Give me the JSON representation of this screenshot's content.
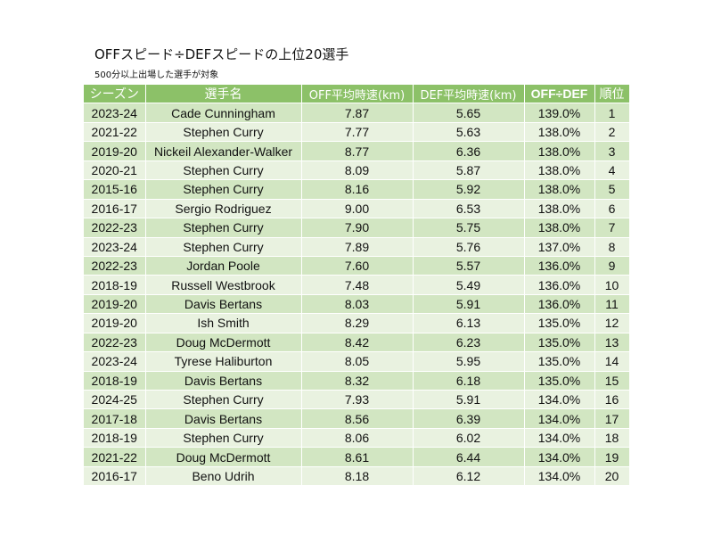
{
  "header": {
    "title": "OFFスピード÷DEFスピードの上位20選手",
    "subtitle": "500分以上出場した選手が対象"
  },
  "table": {
    "columns": [
      "シーズン",
      "選手名",
      "OFF平均時速(km)",
      "DEF平均時速(km)",
      "OFF÷DEF",
      "順位"
    ],
    "rows": [
      [
        "2023-24",
        "Cade Cunningham",
        "7.87",
        "5.65",
        "139.0%",
        "1"
      ],
      [
        "2021-22",
        "Stephen Curry",
        "7.77",
        "5.63",
        "138.0%",
        "2"
      ],
      [
        "2019-20",
        "Nickeil Alexander-Walker",
        "8.77",
        "6.36",
        "138.0%",
        "3"
      ],
      [
        "2020-21",
        "Stephen Curry",
        "8.09",
        "5.87",
        "138.0%",
        "4"
      ],
      [
        "2015-16",
        "Stephen Curry",
        "8.16",
        "5.92",
        "138.0%",
        "5"
      ],
      [
        "2016-17",
        "Sergio Rodriguez",
        "9.00",
        "6.53",
        "138.0%",
        "6"
      ],
      [
        "2022-23",
        "Stephen Curry",
        "7.90",
        "5.75",
        "138.0%",
        "7"
      ],
      [
        "2023-24",
        "Stephen Curry",
        "7.89",
        "5.76",
        "137.0%",
        "8"
      ],
      [
        "2022-23",
        "Jordan Poole",
        "7.60",
        "5.57",
        "136.0%",
        "9"
      ],
      [
        "2018-19",
        "Russell Westbrook",
        "7.48",
        "5.49",
        "136.0%",
        "10"
      ],
      [
        "2019-20",
        "Davis Bertans",
        "8.03",
        "5.91",
        "136.0%",
        "11"
      ],
      [
        "2019-20",
        "Ish Smith",
        "8.29",
        "6.13",
        "135.0%",
        "12"
      ],
      [
        "2022-23",
        "Doug McDermott",
        "8.42",
        "6.23",
        "135.0%",
        "13"
      ],
      [
        "2023-24",
        "Tyrese Haliburton",
        "8.05",
        "5.95",
        "135.0%",
        "14"
      ],
      [
        "2018-19",
        "Davis Bertans",
        "8.32",
        "6.18",
        "135.0%",
        "15"
      ],
      [
        "2024-25",
        "Stephen Curry",
        "7.93",
        "5.91",
        "134.0%",
        "16"
      ],
      [
        "2017-18",
        "Davis Bertans",
        "8.56",
        "6.39",
        "134.0%",
        "17"
      ],
      [
        "2018-19",
        "Stephen Curry",
        "8.06",
        "6.02",
        "134.0%",
        "18"
      ],
      [
        "2021-22",
        "Doug McDermott",
        "8.61",
        "6.44",
        "134.0%",
        "19"
      ],
      [
        "2016-17",
        "Beno Udrih",
        "8.18",
        "6.12",
        "134.0%",
        "20"
      ]
    ]
  },
  "colors": {
    "header_bg": "#8cc168",
    "row_odd": "#d2e6c2",
    "row_even": "#e9f2e0"
  }
}
